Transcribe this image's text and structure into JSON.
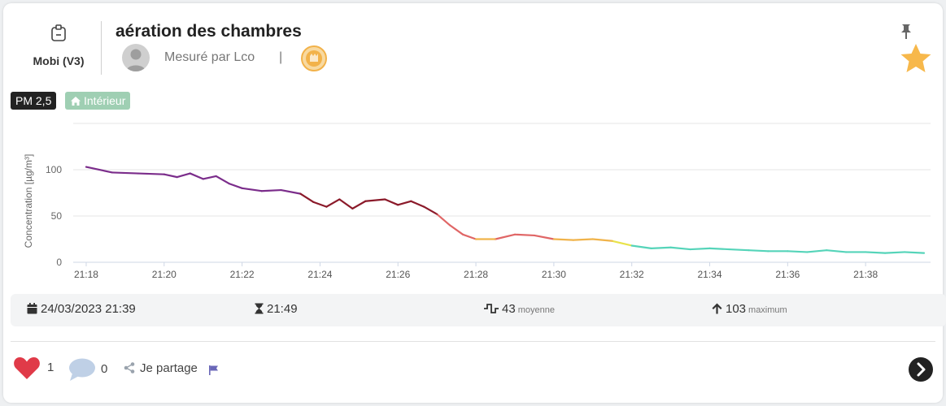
{
  "device": {
    "name": "Mobi (V3)",
    "icon": "device-tag-icon"
  },
  "header": {
    "title": "aération des chambres",
    "measured_by": "Mesuré par Lco",
    "separator": "|"
  },
  "tags": {
    "pollutant": "PM 2,5",
    "location": "Intérieur"
  },
  "colors": {
    "very_bad": "#7b2d8b",
    "bad": "#8b1a2a",
    "mediocre": "#e06666",
    "medium": "#f0b34a",
    "fair": "#e8e34a",
    "good": "#55d4b9",
    "star": "#f7b84b",
    "location_tag": "#9fcfb3"
  },
  "chart_data": {
    "type": "line",
    "ylabel": "Concentration [µg/m³]",
    "ylim": [
      0,
      150
    ],
    "yticks": [
      "0",
      "50",
      "100"
    ],
    "xlim": [
      "21:17:40",
      "21:39:40"
    ],
    "xticks": [
      "21:18",
      "21:20",
      "21:22",
      "21:24",
      "21:26",
      "21:28",
      "21:30",
      "21:32",
      "21:34",
      "21:36",
      "21:38"
    ],
    "grid": true,
    "series": [
      {
        "x": [
          "21:18:00",
          "21:18:40",
          "21:19:20",
          "21:20:00",
          "21:20:20",
          "21:20:40",
          "21:21:00",
          "21:21:20",
          "21:21:40",
          "21:22:00",
          "21:22:30",
          "21:23:00",
          "21:23:30",
          "21:23:50",
          "21:24:10",
          "21:24:30",
          "21:24:50",
          "21:25:10",
          "21:25:40",
          "21:26:00",
          "21:26:20",
          "21:26:40",
          "21:27:00",
          "21:27:20",
          "21:27:40",
          "21:28:00",
          "21:28:30",
          "21:29:00",
          "21:29:30",
          "21:30:00",
          "21:30:30",
          "21:31:00",
          "21:31:30",
          "21:32:00",
          "21:32:30",
          "21:33:00",
          "21:33:30",
          "21:34:00",
          "21:34:30",
          "21:35:00",
          "21:35:30",
          "21:36:00",
          "21:36:30",
          "21:37:00",
          "21:37:30",
          "21:38:00",
          "21:38:30",
          "21:39:00",
          "21:39:30"
        ],
        "y": [
          103,
          97,
          96,
          95,
          92,
          96,
          90,
          93,
          85,
          80,
          77,
          78,
          74,
          65,
          60,
          68,
          58,
          66,
          68,
          62,
          66,
          60,
          52,
          40,
          30,
          25,
          25,
          30,
          29,
          25,
          24,
          25,
          23,
          18,
          15,
          16,
          14,
          15,
          14,
          13,
          12,
          12,
          11,
          13,
          11,
          11,
          10,
          11,
          10
        ]
      }
    ]
  },
  "stats": {
    "date": "24/03/2023 21:39",
    "duration": "21:49",
    "average_value": "43",
    "average_label": "moyenne",
    "max_value": "103",
    "max_label": "maximum"
  },
  "footer": {
    "likes": "1",
    "comments": "0",
    "share_label": "Je partage"
  }
}
